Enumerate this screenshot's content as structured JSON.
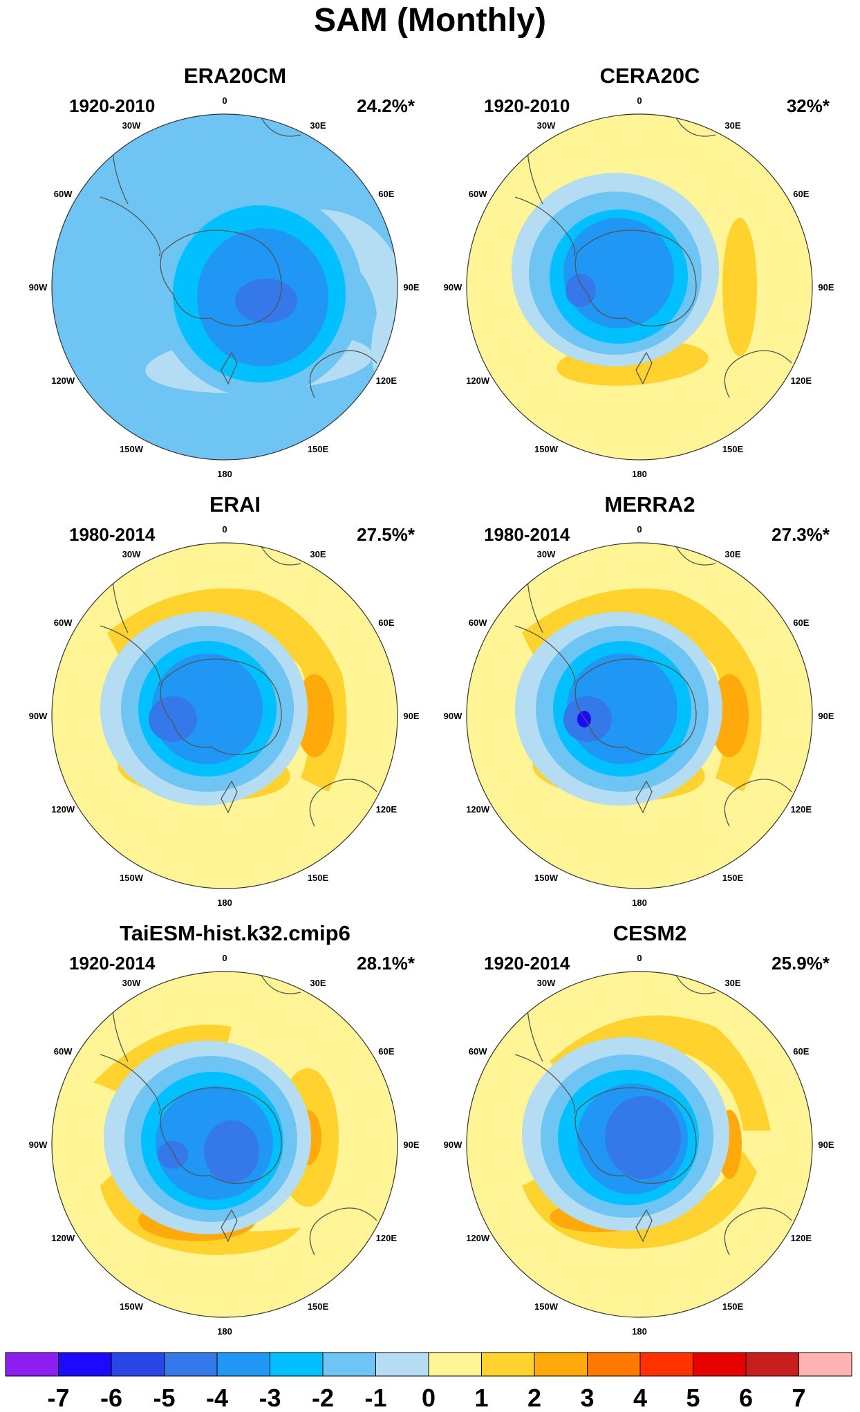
{
  "title": "SAM (Monthly)",
  "panels": [
    {
      "name": "ERA20CM",
      "period": "1920-2010",
      "variance": "24.2%*",
      "style": "era20cm"
    },
    {
      "name": "CERA20C",
      "period": "1920-2010",
      "variance": "32%*",
      "style": "cera20c"
    },
    {
      "name": "ERAI",
      "period": "1980-2014",
      "variance": "27.5%*",
      "style": "erai"
    },
    {
      "name": "MERRA2",
      "period": "1980-2014",
      "variance": "27.3%*",
      "style": "merra2"
    },
    {
      "name": "TaiESM-hist.k32.cmip6",
      "period": "1920-2014",
      "variance": "28.1%*",
      "style": "taiesm"
    },
    {
      "name": "CESM2",
      "period": "1920-2014",
      "variance": "25.9%*",
      "style": "cesm2"
    }
  ],
  "longitude_labels": [
    "0",
    "30E",
    "60E",
    "90E",
    "120E",
    "150E",
    "180",
    "150W",
    "120W",
    "90W",
    "60W",
    "30W"
  ],
  "colorbar": {
    "levels": [
      "-7",
      "-6",
      "-5",
      "-4",
      "-3",
      "-2",
      "-1",
      "0",
      "1",
      "2",
      "3",
      "4",
      "5",
      "6",
      "7"
    ],
    "colors": [
      "#8c1ef0",
      "#1e0afa",
      "#2846e6",
      "#3478ea",
      "#2096f5",
      "#00c0ff",
      "#6ec4f2",
      "#b4dcf2",
      "#fff596",
      "#ffd22d",
      "#ffa90a",
      "#ff7800",
      "#ff3200",
      "#e60000",
      "#c81e1e",
      "#ffb4b4"
    ]
  }
}
